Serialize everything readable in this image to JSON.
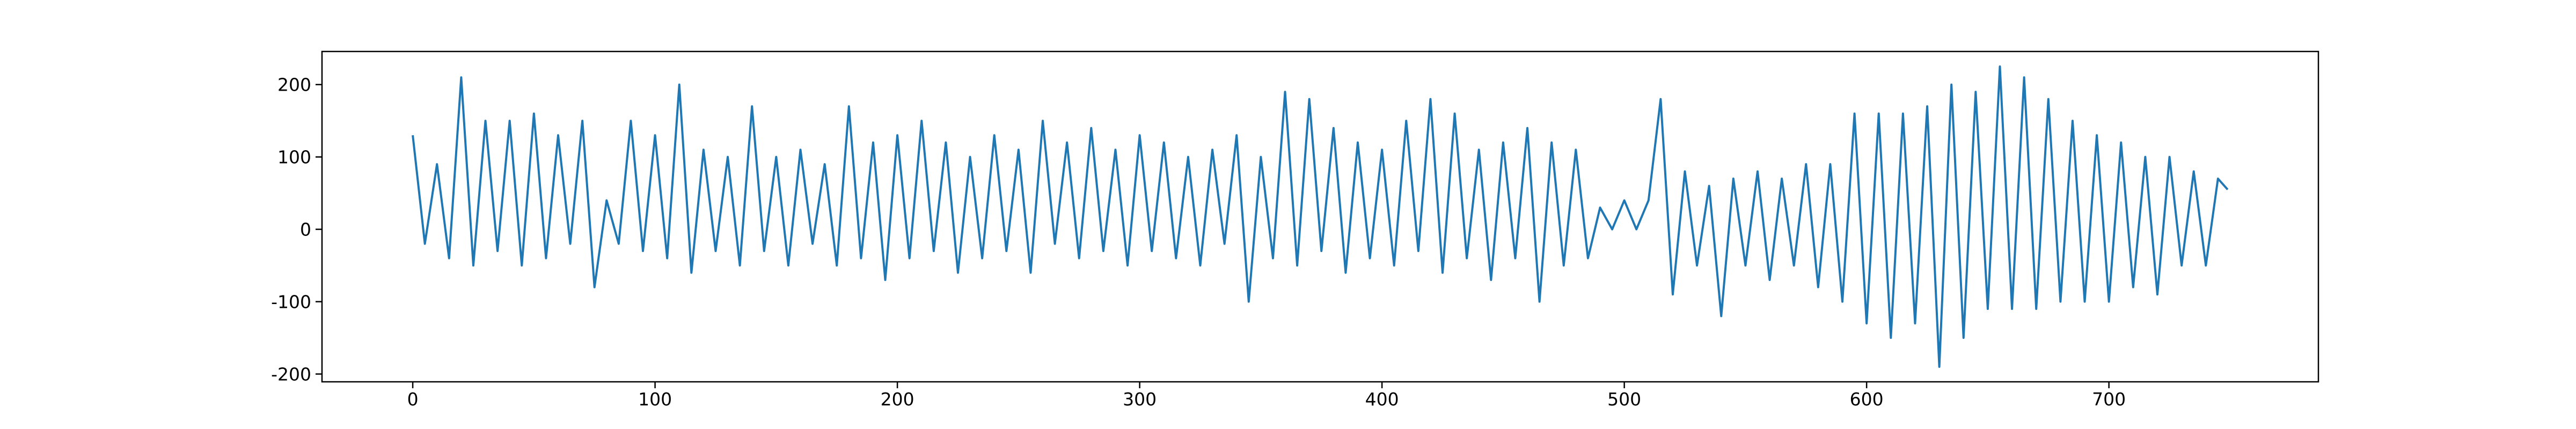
{
  "chart_data": {
    "type": "line",
    "color": "#1f77b4",
    "x": [
      0,
      5,
      10,
      15,
      20,
      25,
      30,
      35,
      40,
      45,
      50,
      55,
      60,
      65,
      70,
      75,
      80,
      85,
      90,
      95,
      100,
      105,
      110,
      115,
      120,
      125,
      130,
      135,
      140,
      145,
      150,
      155,
      160,
      165,
      170,
      175,
      180,
      185,
      190,
      195,
      200,
      205,
      210,
      215,
      220,
      225,
      230,
      235,
      240,
      245,
      250,
      255,
      260,
      265,
      270,
      275,
      280,
      285,
      290,
      295,
      300,
      305,
      310,
      315,
      320,
      325,
      330,
      335,
      340,
      345,
      350,
      355,
      360,
      365,
      370,
      375,
      380,
      385,
      390,
      395,
      400,
      405,
      410,
      415,
      420,
      425,
      430,
      435,
      440,
      445,
      450,
      455,
      460,
      465,
      470,
      475,
      480,
      485,
      490,
      495,
      500,
      505,
      510,
      515,
      520,
      525,
      530,
      535,
      540,
      545,
      550,
      555,
      560,
      565,
      570,
      575,
      580,
      585,
      590,
      595,
      600,
      605,
      610,
      615,
      620,
      625,
      630,
      635,
      640,
      645,
      650,
      655,
      660,
      665,
      670,
      675,
      680,
      685,
      690,
      695,
      700,
      705,
      710,
      715,
      720,
      725,
      730,
      735,
      740,
      745,
      749
    ],
    "values": [
      130,
      -20,
      90,
      -40,
      210,
      -50,
      150,
      -30,
      150,
      -50,
      160,
      -40,
      130,
      -20,
      150,
      -80,
      40,
      -20,
      150,
      -30,
      130,
      -40,
      200,
      -60,
      110,
      -30,
      100,
      -50,
      170,
      -30,
      100,
      -50,
      110,
      -20,
      90,
      -50,
      170,
      -40,
      120,
      -70,
      130,
      -40,
      150,
      -30,
      120,
      -60,
      100,
      -40,
      130,
      -30,
      110,
      -60,
      150,
      -20,
      120,
      -40,
      140,
      -30,
      110,
      -50,
      130,
      -30,
      120,
      -40,
      100,
      -50,
      110,
      -20,
      130,
      -100,
      100,
      -40,
      190,
      -50,
      180,
      -30,
      140,
      -60,
      120,
      -40,
      110,
      -50,
      150,
      -30,
      180,
      -60,
      160,
      -40,
      110,
      -70,
      120,
      -40,
      140,
      -100,
      120,
      -50,
      110,
      -40,
      30,
      0,
      40,
      0,
      40,
      180,
      -90,
      80,
      -50,
      60,
      -120,
      70,
      -50,
      80,
      -70,
      70,
      -50,
      90,
      -80,
      90,
      -100,
      160,
      -130,
      160,
      -150,
      160,
      -130,
      170,
      -190,
      200,
      -150,
      190,
      -110,
      225,
      -110,
      210,
      -110,
      180,
      -100,
      150,
      -100,
      130,
      -100,
      120,
      -80,
      100,
      -90,
      100,
      -50,
      80,
      -50,
      70,
      55
    ],
    "xlim": [
      -37.45,
      786.45
    ],
    "ylim": [
      -210.75,
      245.75
    ],
    "xticks": [
      0,
      100,
      200,
      300,
      400,
      500,
      600,
      700
    ],
    "yticks": [
      -200,
      -100,
      0,
      100,
      200
    ]
  }
}
